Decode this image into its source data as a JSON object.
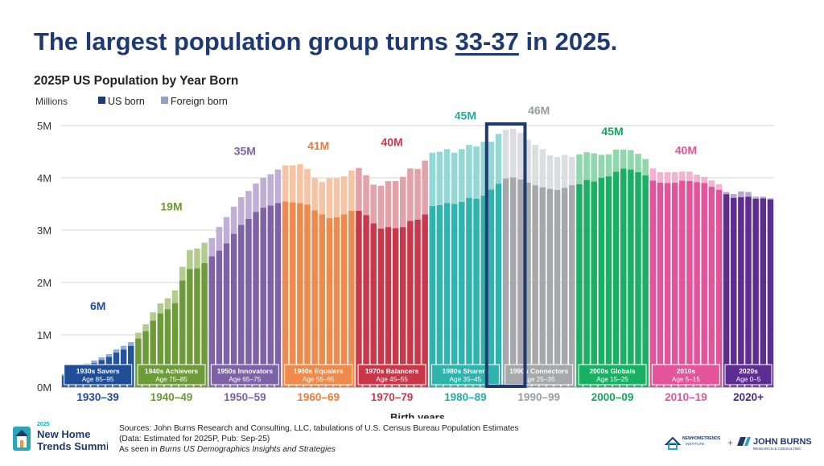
{
  "headline": {
    "before": "The largest population group turns ",
    "highlight": "33-37",
    "after": " in 2025."
  },
  "chart_data": {
    "type": "bar",
    "title": "2025P US Population by Year Born",
    "ylabel": "Millions",
    "xlabel": "Birth years",
    "ylim": [
      0,
      5
    ],
    "yticks": [
      "0M",
      "1M",
      "2M",
      "3M",
      "4M",
      "5M"
    ],
    "legend": [
      {
        "name": "US born",
        "color": "#1f3a70"
      },
      {
        "name": "Foreign born",
        "color": "#8fa3bf"
      }
    ],
    "years_start": 1930,
    "us_born": [
      0.22,
      0.3,
      0.35,
      0.41,
      0.46,
      0.52,
      0.58,
      0.66,
      0.72,
      0.79,
      0.93,
      1.07,
      1.27,
      1.41,
      1.49,
      1.61,
      2.04,
      2.26,
      2.27,
      2.37,
      2.5,
      2.61,
      2.75,
      2.93,
      3.1,
      3.22,
      3.35,
      3.43,
      3.47,
      3.52,
      3.55,
      3.53,
      3.52,
      3.49,
      3.38,
      3.3,
      3.23,
      3.25,
      3.3,
      3.37,
      3.37,
      3.29,
      3.13,
      3.03,
      3.06,
      3.04,
      3.06,
      3.18,
      3.2,
      3.3,
      3.46,
      3.48,
      3.52,
      3.5,
      3.54,
      3.62,
      3.6,
      3.66,
      3.78,
      3.89,
      3.99,
      4.01,
      3.97,
      3.91,
      3.86,
      3.82,
      3.79,
      3.77,
      3.81,
      3.86,
      3.88,
      3.96,
      3.93,
      4.0,
      4.03,
      4.12,
      4.18,
      4.16,
      4.11,
      4.05,
      3.95,
      3.91,
      3.9,
      3.91,
      3.95,
      3.94,
      3.92,
      3.9,
      3.83,
      3.77,
      3.69,
      3.62,
      3.63,
      3.64,
      3.6,
      3.61,
      3.59
    ],
    "foreign_born": [
      0.03,
      0.03,
      0.04,
      0.04,
      0.05,
      0.05,
      0.05,
      0.06,
      0.07,
      0.07,
      0.11,
      0.13,
      0.16,
      0.19,
      0.21,
      0.24,
      0.26,
      0.36,
      0.38,
      0.39,
      0.35,
      0.45,
      0.5,
      0.52,
      0.53,
      0.53,
      0.54,
      0.57,
      0.6,
      0.64,
      0.69,
      0.71,
      0.74,
      0.68,
      0.62,
      0.62,
      0.76,
      0.74,
      0.73,
      0.77,
      0.82,
      0.76,
      0.74,
      0.82,
      0.88,
      0.9,
      0.96,
      1.0,
      0.97,
      1.03,
      1.02,
      1.02,
      1.03,
      0.98,
      1.01,
      1.01,
      1.0,
      1.03,
      0.91,
      0.95,
      0.93,
      0.93,
      0.89,
      0.82,
      0.77,
      0.73,
      0.64,
      0.63,
      0.63,
      0.54,
      0.57,
      0.53,
      0.54,
      0.44,
      0.42,
      0.42,
      0.36,
      0.37,
      0.35,
      0.31,
      0.23,
      0.2,
      0.21,
      0.2,
      0.17,
      0.18,
      0.14,
      0.12,
      0.12,
      0.11,
      0.04,
      0.07,
      0.11,
      0.09,
      0.04,
      0.03,
      0.02
    ],
    "generations": [
      {
        "name": "1930s Savers",
        "ages": "Age 85–95",
        "decade": "1930–39",
        "total": "6M",
        "us_color": "#24539d",
        "fb_color": "#93acd3",
        "label_color": "#1f4e96",
        "box_color": "#1f4e96"
      },
      {
        "name": "1940s Achievers",
        "ages": "Age 75–85",
        "decade": "1940–49",
        "total": "19M",
        "us_color": "#6e9b3a",
        "fb_color": "#b3cc8d",
        "label_color": "#6b9a2e",
        "box_color": "#6e9b3a"
      },
      {
        "name": "1950s Innovators",
        "ages": "Age 65–75",
        "decade": "1950–59",
        "total": "35M",
        "us_color": "#7e62a8",
        "fb_color": "#bfaed6",
        "label_color": "#7d5fa8",
        "box_color": "#7e62a8"
      },
      {
        "name": "1960s Equalers",
        "ages": "Age 55–65",
        "decade": "1960–69",
        "total": "41M",
        "us_color": "#ee8a4c",
        "fb_color": "#f6c4a3",
        "label_color": "#ea7d3a",
        "box_color": "#ee8a4c"
      },
      {
        "name": "1970s Balancers",
        "ages": "Age 45–55",
        "decade": "1970–79",
        "total": "40M",
        "us_color": "#c8384a",
        "fb_color": "#e4a1a9",
        "label_color": "#c8384a",
        "box_color": "#c8384a"
      },
      {
        "name": "1980s Sharers",
        "ages": "Age 35–45",
        "decade": "1980–89",
        "total": "45M",
        "us_color": "#2fb3ad",
        "fb_color": "#94d8d5",
        "label_color": "#23ada5",
        "box_color": "#2fb3ad"
      },
      {
        "name": "1990s Connectors",
        "ages": "Age 25–35",
        "decade": "1990–99",
        "total": "46M",
        "us_color": "#a6a8ab",
        "fb_color": "#dcdde0",
        "label_color": "#9a9c9f",
        "box_color": "#a6a8ab"
      },
      {
        "name": "2000s Globals",
        "ages": "Age 15–25",
        "decade": "2000–09",
        "total": "45M",
        "us_color": "#1ab063",
        "fb_color": "#8fd8ae",
        "label_color": "#12a85a",
        "box_color": "#1ab063"
      },
      {
        "name": "2010s",
        "ages": "Age 5–15",
        "decade": "2010–19",
        "total": "40M",
        "us_color": "#e2559a",
        "fb_color": "#f1b3d0",
        "label_color": "#e2559a",
        "box_color": "#e2559a"
      },
      {
        "name": "2020s",
        "ages": "Age 0–5",
        "decade": "2020+",
        "total": "",
        "us_color": "#5d2d91",
        "fb_color": "#b8a5d1",
        "label_color": "#4b2a84",
        "box_color": "#5d2d91"
      }
    ],
    "highlight": {
      "from_year": 1988,
      "to_year": 1992,
      "color": "#1f3a70"
    }
  },
  "sources": {
    "line1": "Sources: John Burns Research and Consulting, LLC, tabulations of U.S. Census Bureau Population Estimates",
    "line2": "(Data: Estimated for 2025P, Pub: Sep-25)",
    "line3_prefix": "As seen in ",
    "line3_italic": "Burns US Demographics Insights and Strategies"
  },
  "logos": {
    "summit_year": "2025",
    "summit_line1": "New Home",
    "summit_line2": "Trends Summit",
    "nht_line1": "NEWHOMETRENDS",
    "nht_line2": "INSTITUTE",
    "plus": "+",
    "jb_name": "JOHN BURNS",
    "jb_sub": "RESEARCH & CONSULTING",
    "colors": {
      "navy": "#1f3a70",
      "teal": "#2aa6b8",
      "orange": "#f39a2d"
    }
  }
}
